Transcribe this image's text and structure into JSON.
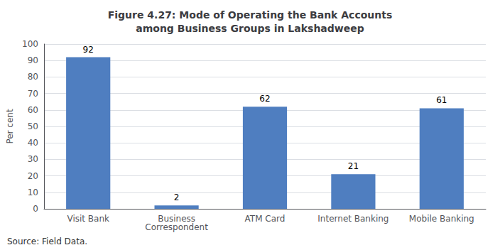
{
  "chart_data": {
    "type": "bar",
    "title": "Figure 4.27: Mode of Operating the Bank Accounts\namong Business Groups in Lakshadweep",
    "categories": [
      "Visit Bank",
      "Business\nCorrespondent",
      "ATM Card",
      "Internet Banking",
      "Mobile Banking"
    ],
    "values": [
      92,
      2,
      62,
      21,
      61
    ],
    "color": "#4F7EC0",
    "ylabel": "Per cent",
    "ylim": [
      0,
      100
    ],
    "yticks": [
      0,
      10,
      20,
      30,
      40,
      50,
      60,
      70,
      80,
      90,
      100
    ],
    "grid": true,
    "data_labels": true,
    "annotations": [
      "Source: Field Data."
    ]
  }
}
